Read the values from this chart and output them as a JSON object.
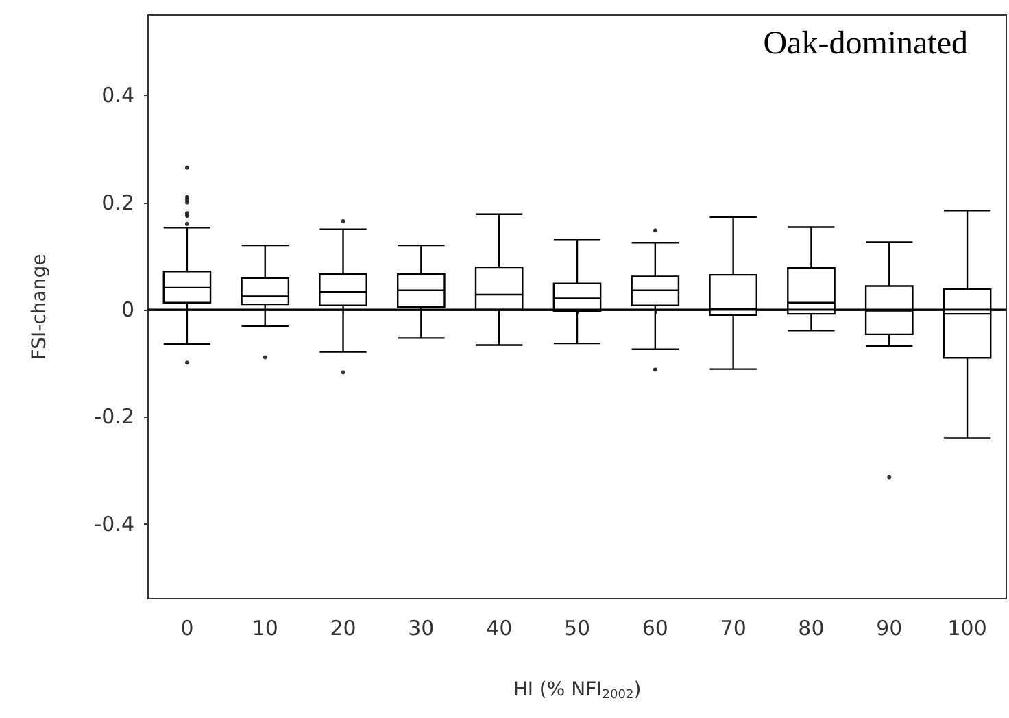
{
  "chart_data": {
    "type": "box",
    "xlabel": "HI (% NFI$_{2002}$)",
    "ylabel": "FSI-change",
    "annotations": [
      "Oak-dominated"
    ],
    "categories": [
      "0",
      "10",
      "20",
      "30",
      "40",
      "50",
      "60",
      "70",
      "80",
      "90",
      "100"
    ],
    "boxes": [
      {
        "low": -0.064,
        "q1": 0.013,
        "median": 0.041,
        "q3": 0.071,
        "high": 0.153,
        "outliers": [
          0.265,
          0.21,
          0.205,
          0.2,
          0.18,
          0.175,
          0.16,
          -0.099
        ]
      },
      {
        "low": -0.031,
        "q1": 0.01,
        "median": 0.025,
        "q3": 0.059,
        "high": 0.12,
        "outliers": [
          -0.089
        ]
      },
      {
        "low": -0.079,
        "q1": 0.008,
        "median": 0.033,
        "q3": 0.066,
        "high": 0.15,
        "outliers": [
          0.165,
          -0.117
        ]
      },
      {
        "low": -0.053,
        "q1": 0.005,
        "median": 0.036,
        "q3": 0.066,
        "high": 0.12
      },
      {
        "low": -0.066,
        "q1": 0.0,
        "median": 0.028,
        "q3": 0.079,
        "high": 0.178
      },
      {
        "low": -0.063,
        "q1": -0.003,
        "median": 0.021,
        "q3": 0.049,
        "high": 0.13
      },
      {
        "low": -0.074,
        "q1": 0.008,
        "median": 0.036,
        "q3": 0.062,
        "high": 0.125,
        "outliers": [
          0.148,
          -0.112
        ]
      },
      {
        "low": -0.111,
        "q1": -0.01,
        "median": 0.002,
        "q3": 0.065,
        "high": 0.173
      },
      {
        "low": -0.039,
        "q1": -0.008,
        "median": 0.013,
        "q3": 0.078,
        "high": 0.154
      },
      {
        "low": -0.068,
        "q1": -0.046,
        "median": -0.002,
        "q3": 0.044,
        "high": 0.126,
        "outliers": [
          -0.313
        ]
      },
      {
        "low": -0.24,
        "q1": -0.09,
        "median": -0.008,
        "q3": 0.038,
        "high": 0.185
      }
    ],
    "color": "#000000",
    "ylim": [
      -0.54,
      0.55
    ],
    "yticks": [
      -0.4,
      -0.2,
      0,
      0.2,
      0.4
    ],
    "ref_lines": [
      {
        "axis": "y",
        "value": 0,
        "color": "#000000"
      }
    ],
    "grid": false
  }
}
